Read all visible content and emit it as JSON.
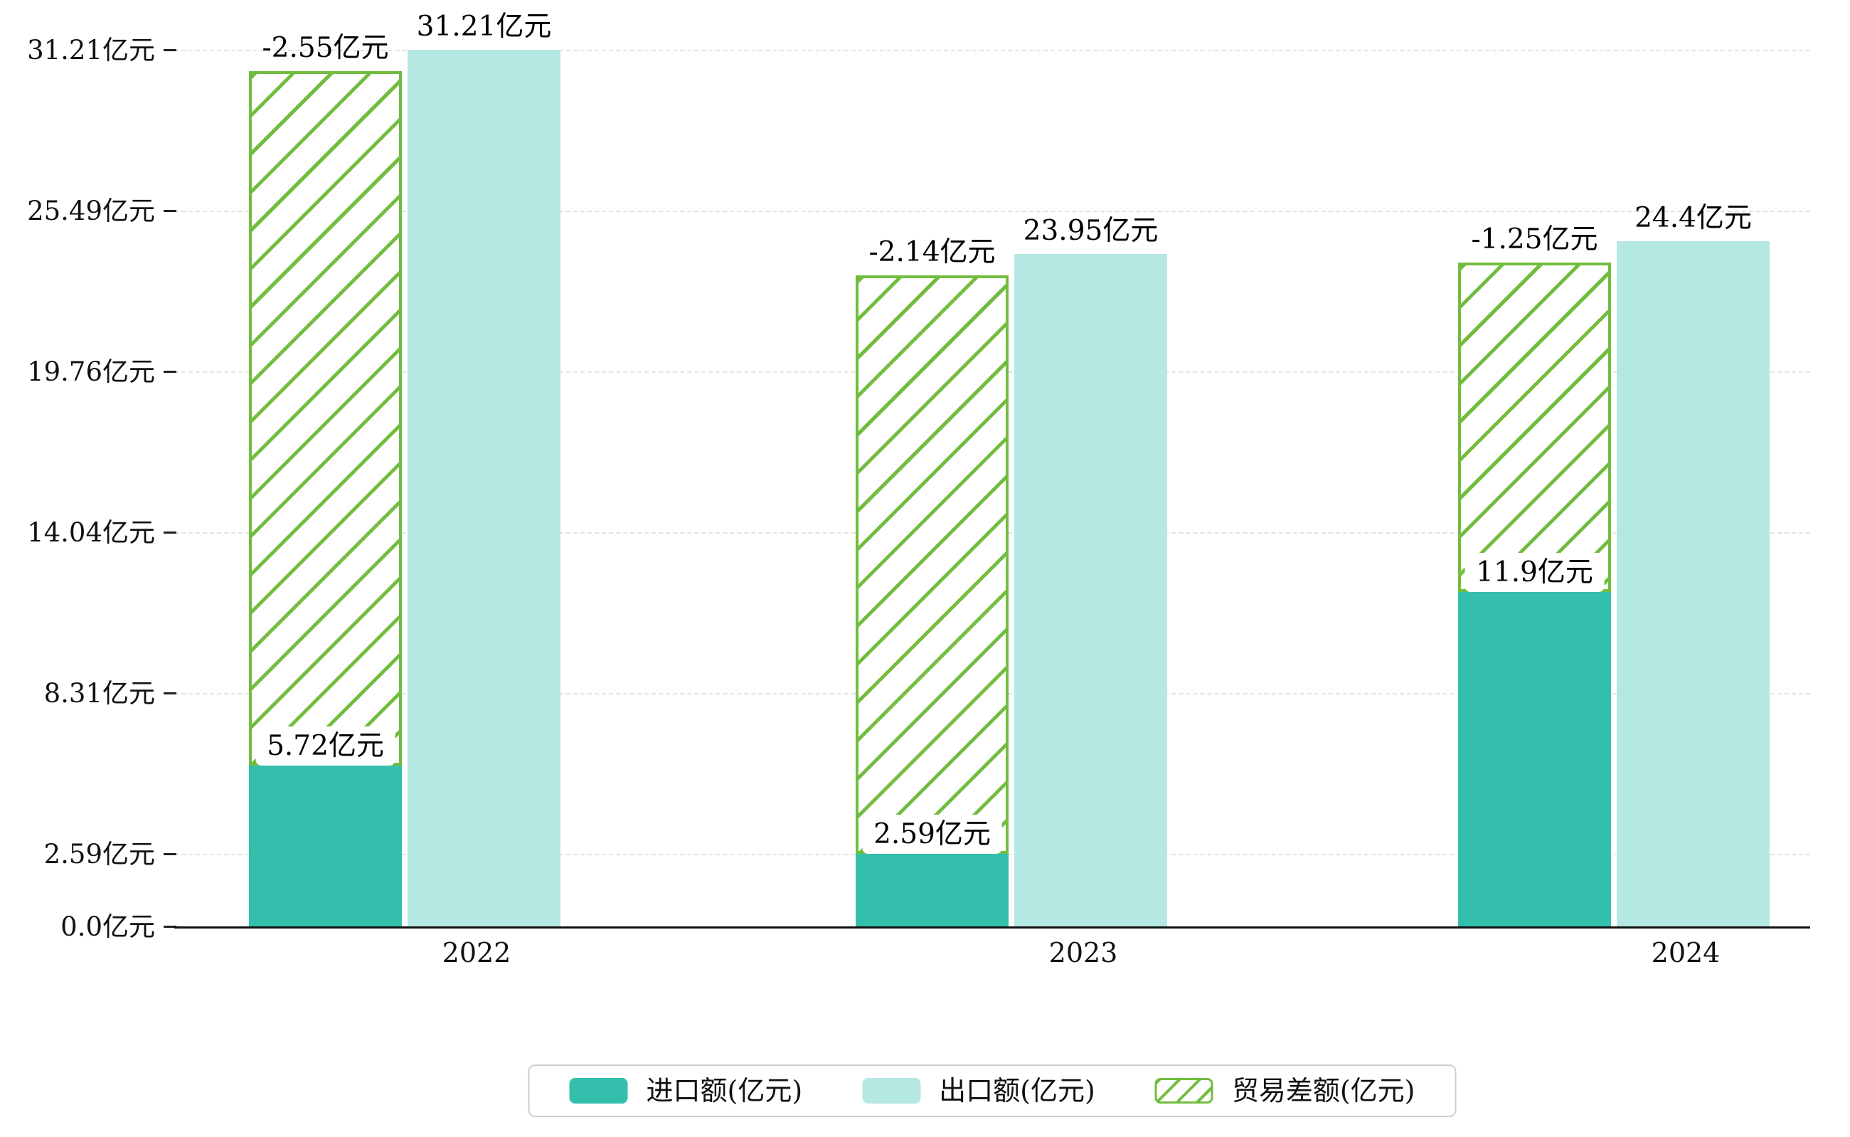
{
  "chart_data": {
    "type": "bar",
    "title": "",
    "categories": [
      "2022",
      "2023",
      "2024"
    ],
    "series": [
      {
        "name": "进口额(亿元)",
        "color": "#34bfad",
        "style": "solid",
        "values": [
          5.72,
          2.59,
          11.9
        ],
        "labels": [
          "5.72亿元",
          "2.59亿元",
          "11.9亿元"
        ]
      },
      {
        "name": "出口额(亿元)",
        "color": "#b5e8e2",
        "style": "solid",
        "values": [
          31.21,
          23.95,
          24.4
        ],
        "labels": [
          "31.21亿元",
          "23.95亿元",
          "24.4亿元"
        ]
      },
      {
        "name": "贸易差额(亿元)",
        "color": "#72bd3f",
        "style": "hatched",
        "values": [
          -2.55,
          -2.14,
          -1.25
        ],
        "labels": [
          "-2.55亿元",
          "-2.14亿元",
          "-1.25亿元"
        ]
      }
    ],
    "xlabel": "",
    "ylabel": "",
    "yticks": [
      "0.0亿元",
      "2.59亿元",
      "8.31亿元",
      "14.04亿元",
      "19.76亿元",
      "25.49亿元",
      "31.21亿元"
    ],
    "ytick_values": [
      0,
      2.59,
      8.31,
      14.04,
      19.76,
      25.49,
      31.21
    ],
    "ylim": [
      0,
      31.21
    ],
    "grid": true,
    "grid_style": "dashed",
    "legend_position": "bottom",
    "notes": "Left column of each year stacks the solid import bar with a green hatched trade-balance segment reaching the export level; right column is the export bar."
  }
}
